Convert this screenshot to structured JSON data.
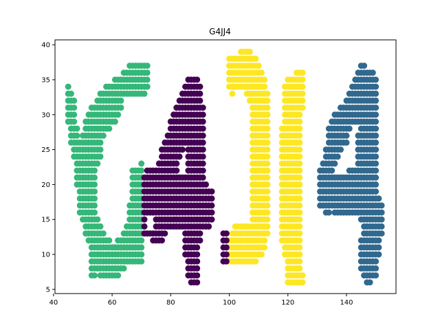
{
  "chart_data": {
    "type": "scatter",
    "title": "G4JJ4",
    "xlabel": "",
    "ylabel": "",
    "xlim": [
      40.5,
      156.9
    ],
    "ylim": [
      4.4,
      40.7
    ],
    "xticks": [
      40,
      60,
      80,
      100,
      120,
      140
    ],
    "yticks": [
      5,
      10,
      15,
      20,
      25,
      30,
      35,
      40
    ],
    "grid": false,
    "legend": "none",
    "colors": {
      "G": "#35b779",
      "4a": "#440154",
      "J1": "#fde725",
      "J2": "#fde725",
      "4b": "#31688e"
    },
    "glyph_rows": {
      "G": [
        [
          45,
          34,
          45,
          34
        ],
        [
          45,
          33,
          46,
          33
        ],
        [
          45,
          32,
          47,
          32
        ],
        [
          45,
          31,
          47,
          31
        ],
        [
          45,
          30,
          47,
          30
        ],
        [
          45,
          29,
          47,
          29
        ],
        [
          46,
          28,
          48,
          28
        ],
        [
          46,
          27,
          48,
          27
        ],
        [
          46,
          26,
          56,
          26
        ],
        [
          47,
          25,
          56,
          25
        ],
        [
          47,
          24,
          56,
          24
        ],
        [
          48,
          23,
          55,
          23
        ],
        [
          48,
          22,
          54,
          22
        ],
        [
          48,
          21,
          54,
          21
        ],
        [
          48,
          20,
          54,
          20
        ],
        [
          49,
          19,
          54,
          19
        ],
        [
          49,
          18,
          54,
          18
        ],
        [
          49,
          17,
          54,
          17
        ],
        [
          49,
          16,
          54,
          16
        ],
        [
          50,
          15,
          55,
          15
        ],
        [
          51,
          14,
          56,
          14
        ],
        [
          51,
          13,
          57,
          13
        ],
        [
          52,
          12,
          59,
          12
        ],
        [
          53,
          11,
          69,
          11
        ],
        [
          53,
          10,
          70,
          10
        ],
        [
          53,
          9,
          70,
          9
        ],
        [
          53,
          8,
          64,
          8
        ],
        [
          53,
          7,
          54,
          7
        ],
        [
          56,
          7,
          62,
          7
        ],
        [
          66,
          37,
          72,
          37
        ],
        [
          64,
          36,
          72,
          36
        ],
        [
          61,
          35,
          72,
          35
        ],
        [
          58,
          34,
          72,
          34
        ],
        [
          56,
          33,
          71,
          33
        ],
        [
          55,
          32,
          63,
          32
        ],
        [
          53,
          31,
          63,
          31
        ],
        [
          52,
          30,
          62,
          30
        ],
        [
          51,
          29,
          61,
          29
        ],
        [
          51,
          28,
          59,
          28
        ],
        [
          50,
          27,
          57,
          27
        ],
        [
          67,
          22,
          70,
          22
        ],
        [
          67,
          21,
          70,
          21
        ],
        [
          67,
          20,
          70,
          20
        ],
        [
          67,
          19,
          70,
          19
        ],
        [
          67,
          18,
          70,
          18
        ],
        [
          66,
          17,
          70,
          17
        ],
        [
          66,
          16,
          70,
          16
        ],
        [
          66,
          15,
          70,
          15
        ],
        [
          65,
          14,
          70,
          14
        ],
        [
          64,
          13,
          70,
          13
        ],
        [
          62,
          12,
          70,
          12
        ],
        [
          60,
          11,
          70,
          11
        ],
        [
          70,
          23,
          70,
          23
        ]
      ],
      "4a": [
        [
          86,
          35,
          89,
          35
        ],
        [
          85,
          34,
          90,
          34
        ],
        [
          84,
          33,
          90,
          33
        ],
        [
          83,
          32,
          90,
          32
        ],
        [
          82,
          31,
          91,
          31
        ],
        [
          81,
          30,
          91,
          30
        ],
        [
          80,
          29,
          91,
          29
        ],
        [
          80,
          28,
          91,
          28
        ],
        [
          79,
          27,
          91,
          27
        ],
        [
          78,
          26,
          91,
          26
        ],
        [
          77,
          25,
          84,
          25
        ],
        [
          86,
          25,
          91,
          25
        ],
        [
          77,
          24,
          83,
          24
        ],
        [
          86,
          24,
          91,
          24
        ],
        [
          76,
          23,
          82,
          23
        ],
        [
          86,
          23,
          91,
          23
        ],
        [
          72,
          22,
          82,
          22
        ],
        [
          86,
          22,
          91,
          22
        ],
        [
          71,
          21,
          91,
          21
        ],
        [
          71,
          20,
          92,
          20
        ],
        [
          71,
          19,
          94,
          19
        ],
        [
          71,
          18,
          94,
          18
        ],
        [
          71,
          17,
          94,
          17
        ],
        [
          71,
          16,
          94,
          16
        ],
        [
          71,
          15,
          71,
          15
        ],
        [
          75,
          15,
          94,
          15
        ],
        [
          71,
          14,
          71,
          14
        ],
        [
          75,
          14,
          93,
          14
        ],
        [
          71,
          13,
          78,
          13
        ],
        [
          85,
          13,
          90,
          13
        ],
        [
          74,
          12,
          77,
          12
        ],
        [
          85,
          12,
          90,
          12
        ],
        [
          85,
          11,
          89,
          11
        ],
        [
          85,
          10,
          89,
          10
        ],
        [
          86,
          9,
          89,
          9
        ],
        [
          86,
          8,
          89,
          8
        ],
        [
          86,
          7,
          89,
          7
        ],
        [
          87,
          6,
          89,
          6
        ]
      ],
      "J1": [
        [
          104,
          39,
          107,
          39
        ],
        [
          100,
          38,
          109,
          38
        ],
        [
          100,
          37,
          110,
          37
        ],
        [
          100,
          36,
          111,
          36
        ],
        [
          100,
          35,
          112,
          35
        ],
        [
          100,
          34,
          112,
          34
        ],
        [
          101,
          33,
          101,
          33
        ],
        [
          106,
          33,
          113,
          33
        ],
        [
          107,
          32,
          113,
          32
        ],
        [
          108,
          31,
          113,
          31
        ],
        [
          108,
          30,
          113,
          30
        ],
        [
          108,
          29,
          113,
          29
        ],
        [
          108,
          28,
          113,
          28
        ],
        [
          108,
          27,
          113,
          27
        ],
        [
          108,
          26,
          113,
          26
        ],
        [
          108,
          25,
          113,
          25
        ],
        [
          108,
          24,
          113,
          24
        ],
        [
          108,
          23,
          113,
          23
        ],
        [
          108,
          22,
          113,
          22
        ],
        [
          108,
          21,
          113,
          21
        ],
        [
          108,
          20,
          113,
          20
        ],
        [
          108,
          19,
          113,
          19
        ],
        [
          108,
          18,
          113,
          18
        ],
        [
          108,
          17,
          113,
          17
        ],
        [
          108,
          16,
          113,
          16
        ],
        [
          108,
          15,
          113,
          15
        ],
        [
          102,
          14,
          113,
          14
        ],
        [
          101,
          13,
          113,
          13
        ],
        [
          100,
          12,
          112,
          12
        ],
        [
          100,
          11,
          112,
          11
        ],
        [
          100,
          10,
          111,
          10
        ],
        [
          100,
          9,
          109,
          9
        ]
      ],
      "J1dark": [
        [
          98,
          13,
          99,
          13
        ],
        [
          98,
          12,
          99,
          12
        ],
        [
          98,
          11,
          99,
          11
        ],
        [
          98,
          10,
          99,
          10
        ],
        [
          98,
          9,
          99,
          9
        ]
      ],
      "J2": [
        [
          123,
          36,
          125,
          36
        ],
        [
          120,
          35,
          125,
          35
        ],
        [
          119,
          34,
          125,
          34
        ],
        [
          119,
          33,
          125,
          33
        ],
        [
          119,
          32,
          125,
          32
        ],
        [
          119,
          31,
          125,
          31
        ],
        [
          119,
          30,
          124,
          30
        ],
        [
          119,
          29,
          124,
          29
        ],
        [
          118,
          28,
          124,
          28
        ],
        [
          118,
          27,
          124,
          27
        ],
        [
          118,
          26,
          124,
          26
        ],
        [
          118,
          25,
          124,
          25
        ],
        [
          118,
          24,
          124,
          24
        ],
        [
          118,
          23,
          124,
          23
        ],
        [
          118,
          22,
          124,
          22
        ],
        [
          118,
          21,
          124,
          21
        ],
        [
          118,
          20,
          124,
          20
        ],
        [
          118,
          19,
          124,
          19
        ],
        [
          118,
          18,
          124,
          18
        ],
        [
          118,
          17,
          124,
          17
        ],
        [
          118,
          16,
          124,
          16
        ],
        [
          118,
          15,
          124,
          15
        ],
        [
          118,
          14,
          124,
          14
        ],
        [
          118,
          13,
          124,
          13
        ],
        [
          118,
          12,
          124,
          12
        ],
        [
          119,
          11,
          124,
          11
        ],
        [
          119,
          10,
          124,
          10
        ],
        [
          120,
          9,
          124,
          9
        ],
        [
          120,
          8,
          124,
          8
        ],
        [
          120,
          7,
          125,
          7
        ],
        [
          120,
          6,
          125,
          6
        ]
      ],
      "4b": [
        [
          145,
          37,
          146,
          37
        ],
        [
          144,
          36,
          149,
          36
        ],
        [
          143,
          35,
          150,
          35
        ],
        [
          142,
          34,
          150,
          34
        ],
        [
          141,
          33,
          150,
          33
        ],
        [
          140,
          32,
          150,
          32
        ],
        [
          138,
          31,
          150,
          31
        ],
        [
          136,
          30,
          150,
          30
        ],
        [
          135,
          29,
          150,
          29
        ],
        [
          134,
          28,
          141,
          28
        ],
        [
          145,
          28,
          150,
          28
        ],
        [
          134,
          27,
          140,
          27
        ],
        [
          144,
          27,
          150,
          27
        ],
        [
          134,
          26,
          140,
          26
        ],
        [
          144,
          26,
          150,
          26
        ],
        [
          133,
          25,
          138,
          25
        ],
        [
          144,
          25,
          150,
          25
        ],
        [
          133,
          24,
          137,
          24
        ],
        [
          144,
          24,
          150,
          24
        ],
        [
          132,
          23,
          136,
          23
        ],
        [
          144,
          23,
          150,
          23
        ],
        [
          131,
          22,
          135,
          22
        ],
        [
          141,
          22,
          150,
          22
        ],
        [
          131,
          21,
          150,
          21
        ],
        [
          131,
          20,
          150,
          20
        ],
        [
          131,
          19,
          150,
          19
        ],
        [
          131,
          18,
          151,
          18
        ],
        [
          131,
          17,
          152,
          17
        ],
        [
          133,
          16,
          134,
          16
        ],
        [
          136,
          16,
          152,
          16
        ],
        [
          145,
          15,
          152,
          15
        ],
        [
          146,
          14,
          152,
          14
        ],
        [
          146,
          13,
          152,
          13
        ],
        [
          145,
          12,
          151,
          12
        ],
        [
          145,
          11,
          151,
          11
        ],
        [
          145,
          10,
          151,
          10
        ],
        [
          145,
          9,
          150,
          9
        ],
        [
          145,
          8,
          150,
          8
        ],
        [
          146,
          7,
          150,
          7
        ],
        [
          147,
          6,
          148,
          6
        ]
      ]
    }
  }
}
